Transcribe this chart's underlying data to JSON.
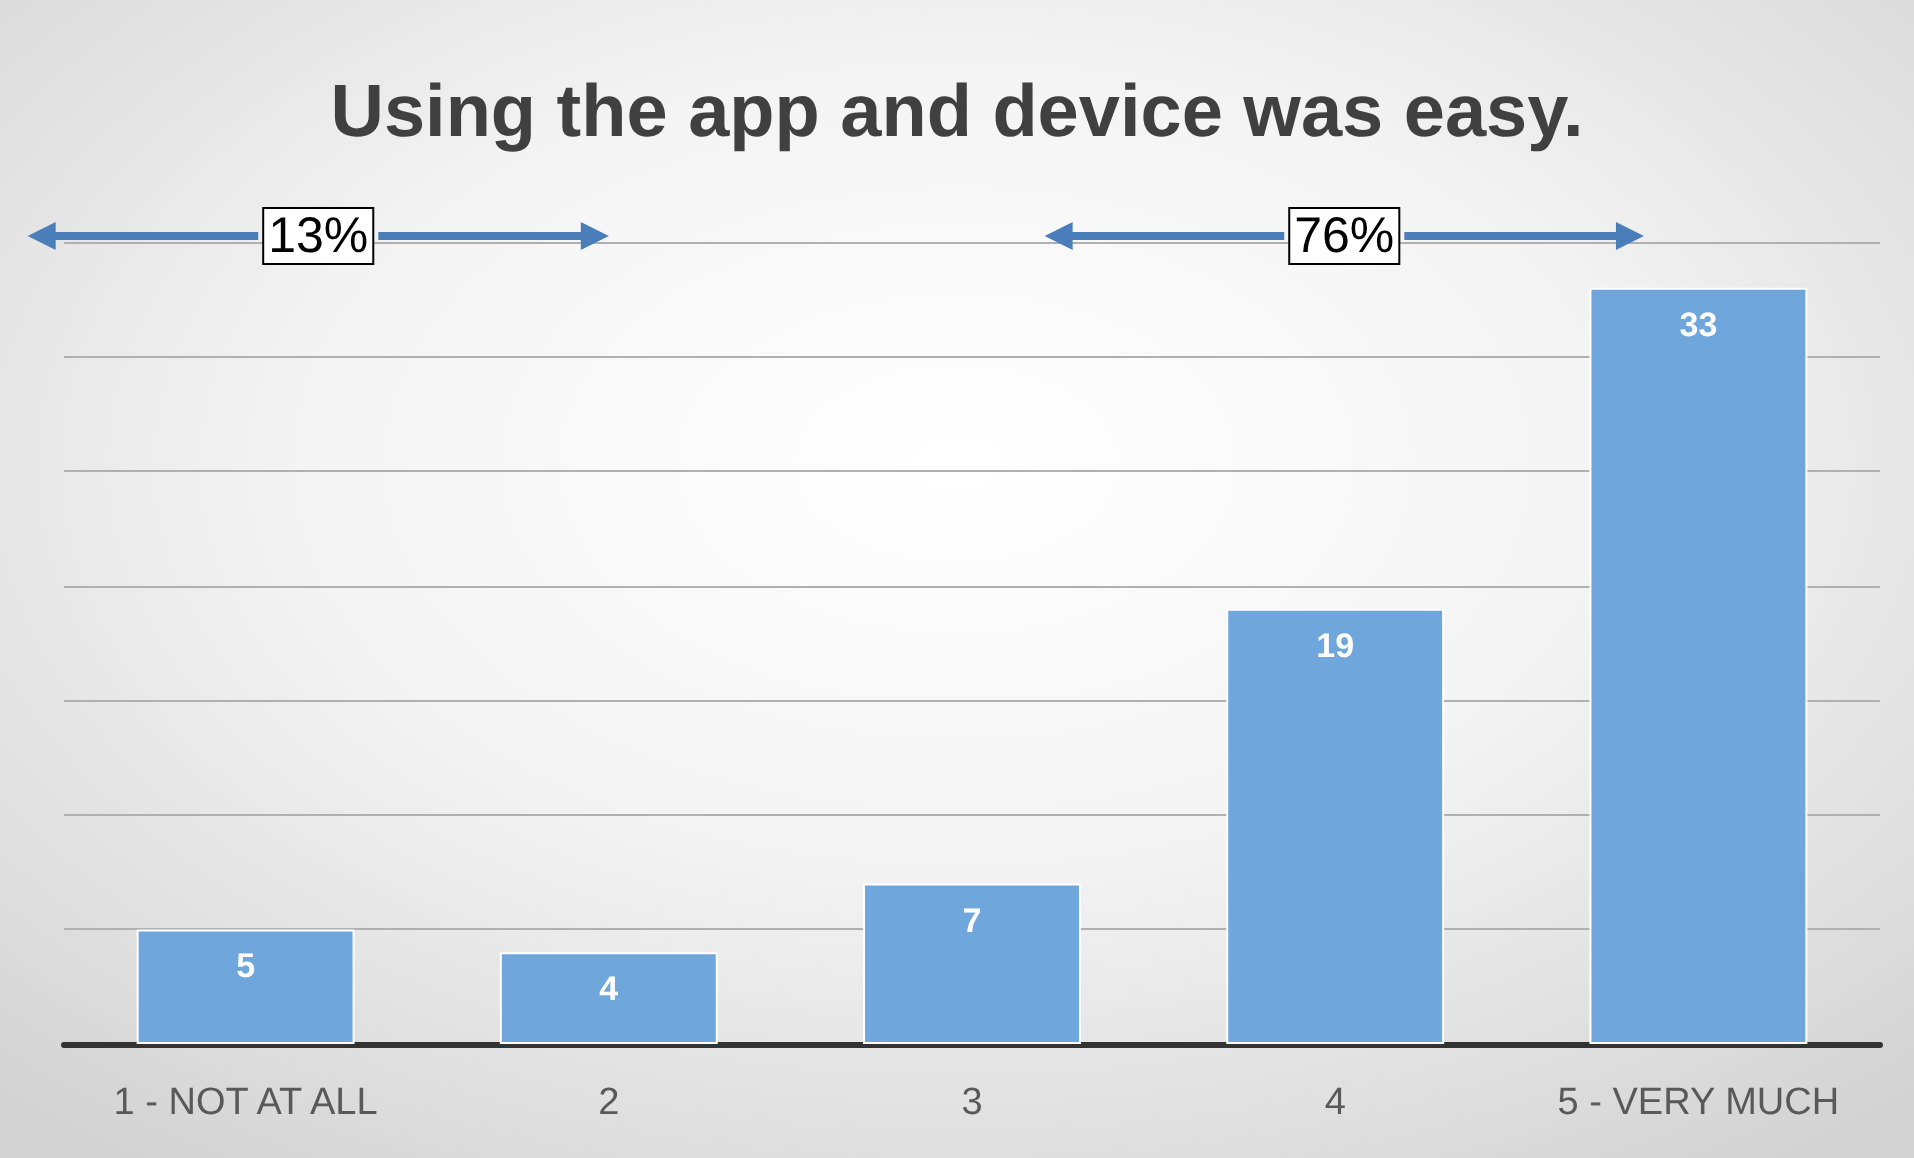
{
  "chart_data": {
    "type": "bar",
    "title": "Using the app and device was easy.",
    "categories": [
      "1 - NOT AT ALL",
      "2",
      "3",
      "4",
      "5 - VERY MUCH"
    ],
    "values": [
      5,
      4,
      7,
      19,
      33
    ],
    "color": "#6fa6dc",
    "data_labels": true,
    "ylim": [
      0,
      35
    ],
    "yticks": [
      {
        "value": 0,
        "label": null
      },
      {
        "value": 5,
        "label": null
      },
      {
        "value": 10,
        "label": null
      },
      {
        "value": 15,
        "label": null
      },
      {
        "value": 20,
        "label": null
      },
      {
        "value": 25,
        "label": null
      },
      {
        "value": 30,
        "label": null
      },
      {
        "value": 35,
        "label": null
      }
    ],
    "tick_labels": "x",
    "grid": "y",
    "annotations": [
      "13%",
      "76%"
    ]
  }
}
